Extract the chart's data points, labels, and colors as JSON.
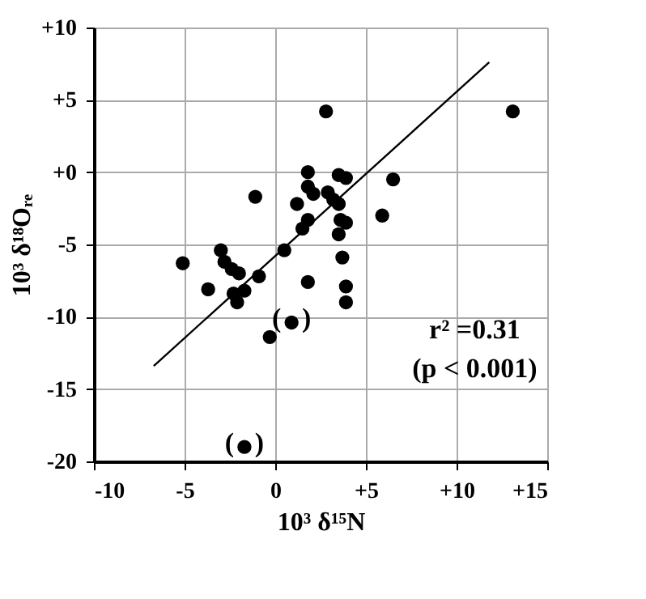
{
  "chart_data": {
    "type": "scatter",
    "xlabel": "10³ δ¹⁵N",
    "ylabel": "10³ δ¹⁸Oᵣₑ",
    "xlim": [
      -10,
      15
    ],
    "ylim": [
      -20,
      10
    ],
    "xticks": [
      -10,
      -5,
      0,
      {
        "value": 5,
        "label": "+5"
      },
      {
        "value": 10,
        "label": "+10"
      },
      {
        "value": 15,
        "label": "+15"
      }
    ],
    "yticks": [
      {
        "value": 10,
        "label": "+10"
      },
      {
        "value": 5,
        "label": "+5"
      },
      {
        "value": 0,
        "label": "+0"
      },
      -5,
      -10,
      -15,
      -20
    ],
    "grid": true,
    "series": [
      {
        "marker": "circle",
        "color": "#000000",
        "x": [
          2.8,
          13.1,
          1.8,
          3.5,
          3.9,
          6.5,
          -1.1,
          1.8,
          2.1,
          1.2,
          2.9,
          3.2,
          3.5,
          5.9,
          1.8,
          1.5,
          3.6,
          3.9,
          3.5,
          3.7,
          0.5,
          -5.1,
          -3.0,
          -2.8,
          -2.4,
          -2.0,
          -0.9,
          -3.7,
          -2.3,
          -1.7,
          -2.1,
          1.8,
          3.9,
          3.9,
          -0.3,
          0.9,
          -1.7
        ],
        "values": [
          4.2,
          4.2,
          0.0,
          -0.2,
          -0.4,
          -0.5,
          -1.7,
          -1.0,
          -1.5,
          -2.2,
          -1.4,
          -1.9,
          -2.2,
          -3.0,
          -3.3,
          -3.9,
          -3.3,
          -3.5,
          -4.3,
          -5.9,
          -5.4,
          -6.3,
          -5.4,
          -6.2,
          -6.7,
          -7.0,
          -7.2,
          -8.1,
          -8.4,
          -8.2,
          -9.0,
          -7.6,
          -7.9,
          -9.0,
          -11.4,
          -10.4,
          -19.0
        ]
      },
      {
        "type": "line",
        "color": "#000000",
        "x": [
          -6.7,
          11.8
        ],
        "values": [
          -13.4,
          7.6
        ]
      }
    ],
    "annotations": [
      {
        "text": "(   )",
        "x": 0.9,
        "y": -10.4
      },
      {
        "text": "(   )",
        "x": -1.7,
        "y": -19.0
      },
      "r² =0.31",
      "(p < 0.001)"
    ]
  }
}
